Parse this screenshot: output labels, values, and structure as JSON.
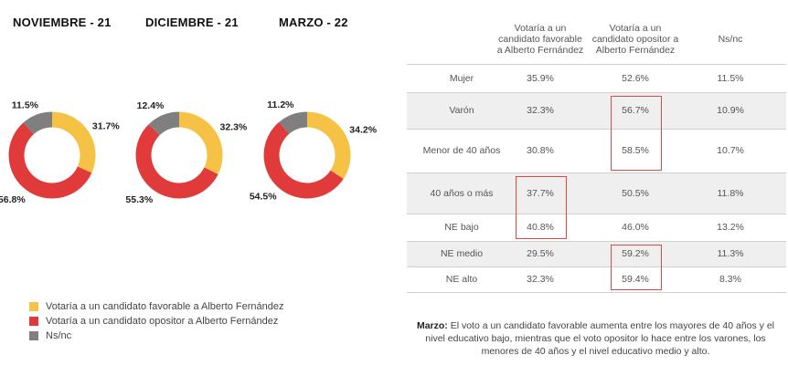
{
  "chart_data": [
    {
      "type": "pie",
      "title": "NOVIEMBRE - 21",
      "categories": [
        "Votaría a un candidato favorable a Alberto Fernández",
        "Votaría a un candidato opositor a Alberto Fernández",
        "Ns/nc"
      ],
      "values": [
        31.7,
        56.8,
        11.5
      ],
      "labels": [
        "31.7%",
        "56.8%",
        "11.5%"
      ]
    },
    {
      "type": "pie",
      "title": "DICIEMBRE - 21",
      "categories": [
        "Votaría a un candidato favorable a Alberto Fernández",
        "Votaría a un candidato opositor a Alberto Fernández",
        "Ns/nc"
      ],
      "values": [
        32.3,
        55.3,
        12.4
      ],
      "labels": [
        "32.3%",
        "55.3%",
        "12.4%"
      ]
    },
    {
      "type": "pie",
      "title": "MARZO - 22",
      "categories": [
        "Votaría a un candidato favorable a Alberto Fernández",
        "Votaría a un candidato opositor a Alberto Fernández",
        "Ns/nc"
      ],
      "values": [
        34.2,
        54.5,
        11.2
      ],
      "labels": [
        "34.2%",
        "54.5%",
        "11.2%"
      ]
    },
    {
      "type": "table",
      "columns": [
        "",
        "Votaría a un candidato favorable a Alberto Fernández",
        "Votaría a un candidato opositor a Alberto Fernández",
        "Ns/nc"
      ],
      "rows": [
        {
          "label": "Mujer",
          "values": [
            "35.9%",
            "52.6%",
            "11.5%"
          ]
        },
        {
          "label": "Varón",
          "values": [
            "32.3%",
            "56.7%",
            "10.9%"
          ]
        },
        {
          "label": "Menor de 40 años",
          "values": [
            "30.8%",
            "58.5%",
            "10.7%"
          ]
        },
        {
          "label": "40 años o más",
          "values": [
            "37.7%",
            "50.5%",
            "11.8%"
          ]
        },
        {
          "label": "NE bajo",
          "values": [
            "40.8%",
            "46.0%",
            "13.2%"
          ]
        },
        {
          "label": "NE medio",
          "values": [
            "29.5%",
            "59.2%",
            "11.3%"
          ]
        },
        {
          "label": "NE alto",
          "values": [
            "32.3%",
            "59.4%",
            "8.3%"
          ]
        }
      ],
      "highlighted": [
        "Varón|opositor",
        "Menor de 40 años|opositor",
        "40 años o más|favorable",
        "NE bajo|favorable",
        "NE medio|opositor",
        "NE alto|opositor"
      ]
    }
  ],
  "months": [
    "NOVIEMBRE - 21",
    "DICIEMBRE - 21",
    "MARZO - 22"
  ],
  "colors": {
    "favorable": "#f5c245",
    "opositor": "#e03a3a",
    "nsnc": "#7f7f7f",
    "highlight": "#e04848",
    "shade": "#efefef"
  },
  "legend": [
    {
      "label": "Votaría a un candidato favorable a Alberto Fernández",
      "color": "#f5c245"
    },
    {
      "label": "Votaría a un candidato opositor a Alberto Fernández",
      "color": "#e03a3a"
    },
    {
      "label": "Ns/nc",
      "color": "#7f7f7f"
    }
  ],
  "table_headers": [
    [
      "Votaría a un",
      "candidato favorable",
      "a Alberto Fernández"
    ],
    [
      "Votaría a un",
      "candidato opositor a",
      "Alberto Fernández"
    ],
    [
      "Ns/nc"
    ]
  ],
  "note": {
    "lead": "Marzo:",
    "body": " El voto a  un candidato favorable aumenta entre los mayores de 40 años y el nivel educativo bajo, mientras que el voto opositor lo hace entre los varones, los menores de 40 años y el nivel educativo medio y alto."
  }
}
